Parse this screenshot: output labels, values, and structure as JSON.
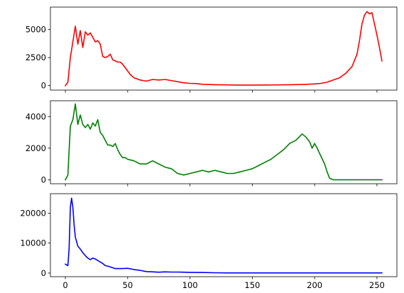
{
  "chart_data": [
    {
      "type": "line",
      "color": "#ff0000",
      "xlim": [
        -12,
        266
      ],
      "ylim": [
        -400,
        7000
      ],
      "xticks": [
        0,
        50,
        100,
        150,
        200,
        250
      ],
      "yticks": [
        0,
        2500,
        5000
      ],
      "ytick_labels": [
        "0",
        "2500",
        "5000"
      ],
      "grid": false,
      "points": [
        [
          0,
          0
        ],
        [
          2,
          300
        ],
        [
          4,
          2500
        ],
        [
          6,
          3900
        ],
        [
          8,
          5300
        ],
        [
          10,
          3700
        ],
        [
          12,
          4900
        ],
        [
          14,
          3400
        ],
        [
          16,
          4800
        ],
        [
          18,
          4500
        ],
        [
          20,
          4700
        ],
        [
          22,
          4300
        ],
        [
          24,
          3900
        ],
        [
          26,
          4000
        ],
        [
          28,
          3700
        ],
        [
          30,
          2600
        ],
        [
          32,
          2500
        ],
        [
          34,
          2600
        ],
        [
          36,
          2800
        ],
        [
          38,
          2300
        ],
        [
          40,
          2200
        ],
        [
          42,
          2100
        ],
        [
          44,
          2100
        ],
        [
          46,
          1900
        ],
        [
          48,
          1600
        ],
        [
          50,
          1300
        ],
        [
          52,
          1000
        ],
        [
          55,
          700
        ],
        [
          60,
          500
        ],
        [
          65,
          400
        ],
        [
          70,
          550
        ],
        [
          75,
          500
        ],
        [
          80,
          550
        ],
        [
          85,
          450
        ],
        [
          90,
          350
        ],
        [
          95,
          250
        ],
        [
          100,
          200
        ],
        [
          105,
          180
        ],
        [
          110,
          120
        ],
        [
          120,
          80
        ],
        [
          130,
          60
        ],
        [
          140,
          50
        ],
        [
          150,
          50
        ],
        [
          160,
          55
        ],
        [
          170,
          60
        ],
        [
          180,
          80
        ],
        [
          190,
          100
        ],
        [
          200,
          150
        ],
        [
          205,
          200
        ],
        [
          210,
          300
        ],
        [
          215,
          500
        ],
        [
          220,
          700
        ],
        [
          225,
          1100
        ],
        [
          230,
          1700
        ],
        [
          234,
          2800
        ],
        [
          236,
          4000
        ],
        [
          238,
          5500
        ],
        [
          240,
          6300
        ],
        [
          242,
          6600
        ],
        [
          244,
          6400
        ],
        [
          246,
          6500
        ],
        [
          248,
          5500
        ],
        [
          250,
          4500
        ],
        [
          252,
          3400
        ],
        [
          254,
          2200
        ]
      ]
    },
    {
      "type": "line",
      "color": "#008000",
      "xlim": [
        -12,
        266
      ],
      "ylim": [
        -250,
        5000
      ],
      "xticks": [
        0,
        50,
        100,
        150,
        200,
        250
      ],
      "yticks": [
        0,
        2000,
        4000
      ],
      "ytick_labels": [
        "0",
        "2000",
        "4000"
      ],
      "grid": false,
      "points": [
        [
          0,
          0
        ],
        [
          2,
          300
        ],
        [
          4,
          3400
        ],
        [
          6,
          3800
        ],
        [
          8,
          4800
        ],
        [
          10,
          3500
        ],
        [
          12,
          4100
        ],
        [
          14,
          3500
        ],
        [
          16,
          3300
        ],
        [
          18,
          3500
        ],
        [
          20,
          3200
        ],
        [
          22,
          3600
        ],
        [
          24,
          3400
        ],
        [
          26,
          3800
        ],
        [
          28,
          3000
        ],
        [
          30,
          2800
        ],
        [
          32,
          2500
        ],
        [
          34,
          2200
        ],
        [
          36,
          2200
        ],
        [
          38,
          2100
        ],
        [
          40,
          2300
        ],
        [
          42,
          1900
        ],
        [
          44,
          1600
        ],
        [
          46,
          1400
        ],
        [
          48,
          1400
        ],
        [
          50,
          1300
        ],
        [
          55,
          1200
        ],
        [
          60,
          1000
        ],
        [
          65,
          1000
        ],
        [
          70,
          1200
        ],
        [
          75,
          1000
        ],
        [
          80,
          800
        ],
        [
          85,
          700
        ],
        [
          90,
          400
        ],
        [
          95,
          300
        ],
        [
          100,
          400
        ],
        [
          105,
          500
        ],
        [
          110,
          600
        ],
        [
          115,
          500
        ],
        [
          120,
          600
        ],
        [
          125,
          500
        ],
        [
          130,
          400
        ],
        [
          135,
          400
        ],
        [
          140,
          500
        ],
        [
          145,
          600
        ],
        [
          150,
          700
        ],
        [
          155,
          900
        ],
        [
          160,
          1100
        ],
        [
          165,
          1300
        ],
        [
          170,
          1600
        ],
        [
          175,
          1900
        ],
        [
          180,
          2300
        ],
        [
          185,
          2500
        ],
        [
          190,
          2900
        ],
        [
          193,
          2700
        ],
        [
          196,
          2400
        ],
        [
          198,
          2000
        ],
        [
          200,
          2300
        ],
        [
          202,
          2000
        ],
        [
          205,
          1500
        ],
        [
          208,
          1000
        ],
        [
          210,
          500
        ],
        [
          212,
          100
        ],
        [
          215,
          0
        ],
        [
          230,
          0
        ],
        [
          254,
          0
        ]
      ]
    },
    {
      "type": "line",
      "color": "#0000ff",
      "xlim": [
        -12,
        266
      ],
      "ylim": [
        -1200,
        26500
      ],
      "xticks": [
        0,
        50,
        100,
        150,
        200,
        250
      ],
      "yticks": [
        0,
        10000,
        20000
      ],
      "ytick_labels": [
        "0",
        "10000",
        "20000"
      ],
      "xtick_labels": [
        "0",
        "50",
        "100",
        "150",
        "200",
        "250"
      ],
      "grid": false,
      "points": [
        [
          0,
          3000
        ],
        [
          2,
          2500
        ],
        [
          3,
          8000
        ],
        [
          4,
          22000
        ],
        [
          5,
          25000
        ],
        [
          6,
          22000
        ],
        [
          7,
          16000
        ],
        [
          8,
          12000
        ],
        [
          10,
          9000
        ],
        [
          12,
          8000
        ],
        [
          14,
          6800
        ],
        [
          16,
          5800
        ],
        [
          18,
          5000
        ],
        [
          20,
          4500
        ],
        [
          22,
          5000
        ],
        [
          24,
          4700
        ],
        [
          26,
          4200
        ],
        [
          28,
          3700
        ],
        [
          30,
          3200
        ],
        [
          32,
          2500
        ],
        [
          35,
          2200
        ],
        [
          40,
          1500
        ],
        [
          45,
          1500
        ],
        [
          50,
          1600
        ],
        [
          55,
          1200
        ],
        [
          60,
          900
        ],
        [
          65,
          500
        ],
        [
          70,
          400
        ],
        [
          75,
          300
        ],
        [
          80,
          400
        ],
        [
          85,
          350
        ],
        [
          90,
          350
        ],
        [
          95,
          300
        ],
        [
          100,
          250
        ],
        [
          110,
          200
        ],
        [
          120,
          100
        ],
        [
          130,
          50
        ],
        [
          150,
          50
        ],
        [
          200,
          50
        ],
        [
          254,
          50
        ]
      ]
    }
  ]
}
